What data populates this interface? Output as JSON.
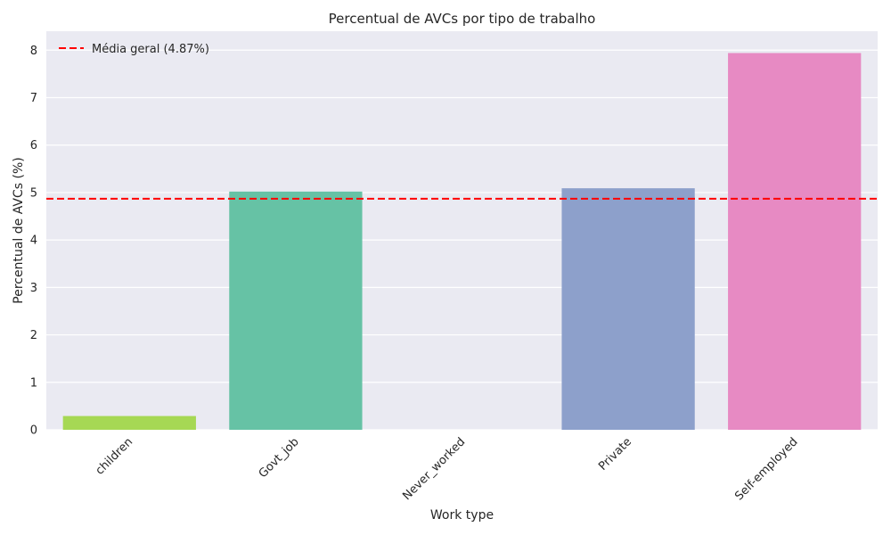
{
  "chart_data": {
    "type": "bar",
    "title": "Percentual de AVCs por tipo de trabalho",
    "xlabel": "Work type",
    "ylabel": "Percentual de AVCs (%)",
    "categories": [
      "children",
      "Govt_job",
      "Never_worked",
      "Private",
      "Self-employed"
    ],
    "values": [
      0.29,
      5.02,
      0.0,
      5.09,
      7.94
    ],
    "colors": [
      "#a6d854",
      "#66c2a5",
      "#fc8d62",
      "#8da0cb",
      "#e78ac3"
    ],
    "ylim": [
      0,
      8.4
    ],
    "yticks": [
      0,
      1,
      2,
      3,
      4,
      5,
      6,
      7,
      8
    ],
    "grid": true,
    "background": "#eaeaf2",
    "reference_line": {
      "value": 4.87,
      "label": "Média geral (4.87%)",
      "color": "#ff0000",
      "style": "dashed"
    },
    "legend_position": "top-left"
  }
}
